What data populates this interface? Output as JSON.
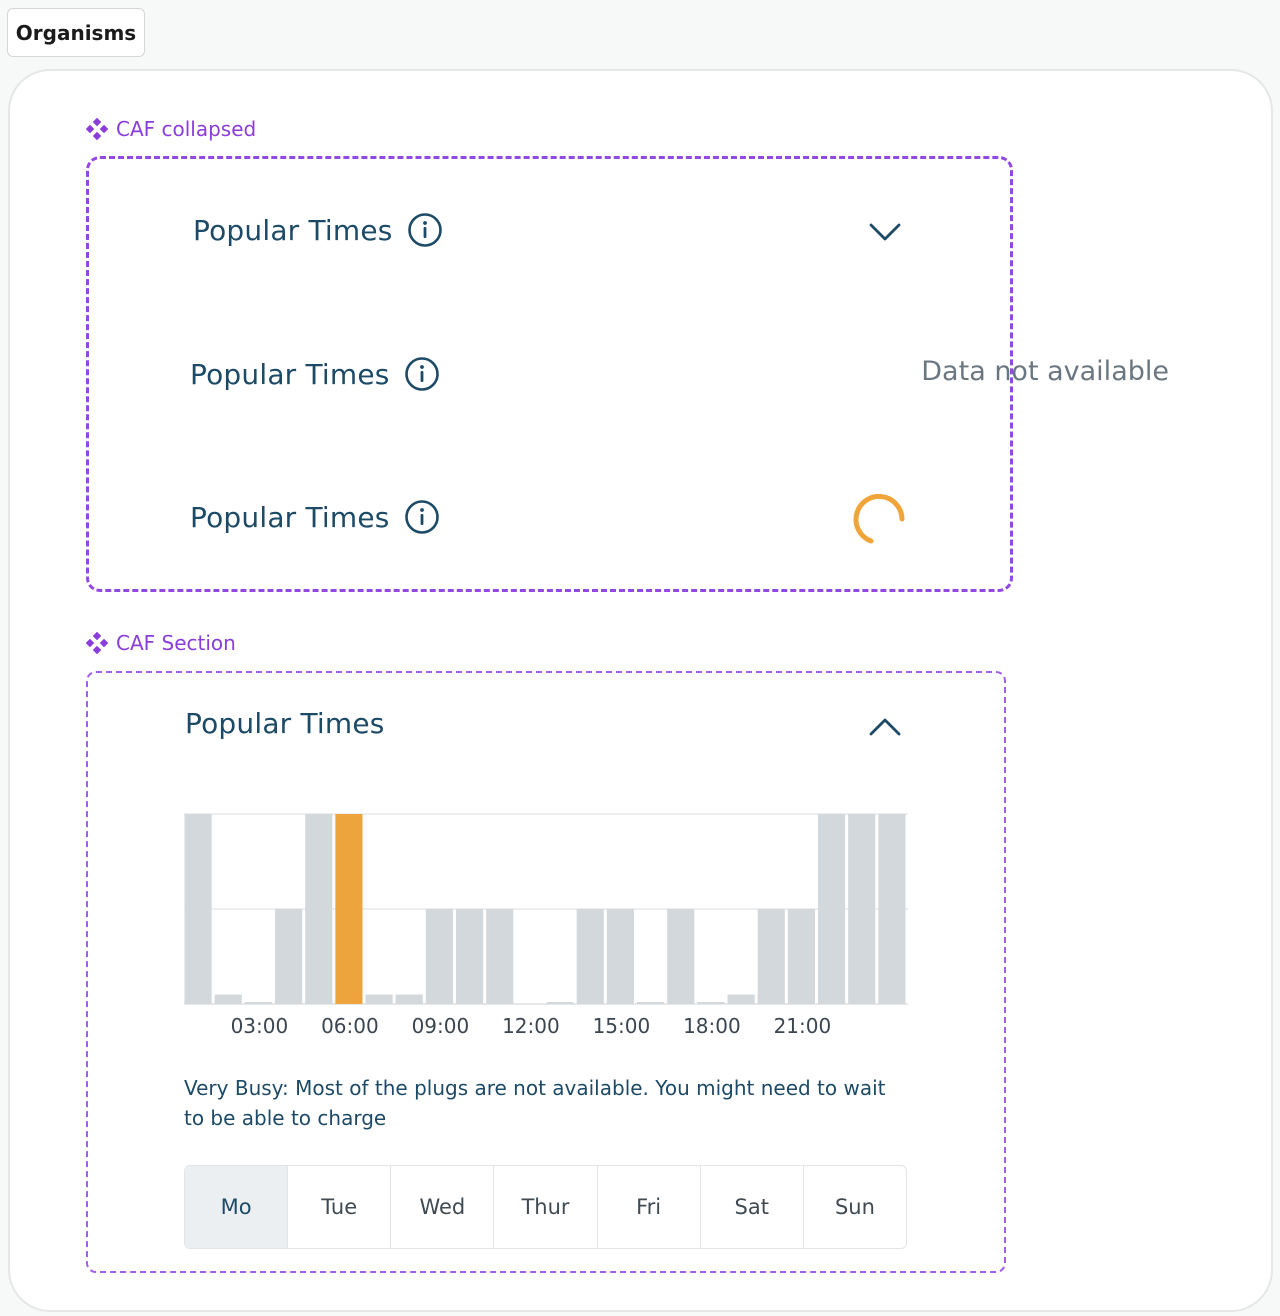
{
  "tab": {
    "label": "Organisms"
  },
  "collapsed": {
    "label": "CAF collapsed",
    "rows": [
      {
        "title": "Popular Times",
        "state": "chevron-down"
      },
      {
        "title": "Popular Times",
        "status": "Data not available"
      },
      {
        "title": "Popular Times",
        "state": "loading"
      }
    ]
  },
  "section": {
    "label": "CAF Section",
    "title": "Popular Times",
    "description": "Very Busy: Most of the plugs are not available. You might need to wait to be able to charge",
    "days": [
      "Mo",
      "Tue",
      "Wed",
      "Thur",
      "Fri",
      "Sat",
      "Sun"
    ],
    "selected_day": "Mo"
  },
  "chart_data": {
    "type": "bar",
    "x": [
      0,
      1,
      2,
      3,
      4,
      5,
      6,
      7,
      8,
      9,
      10,
      11,
      12,
      13,
      14,
      15,
      16,
      17,
      18,
      19,
      20,
      21,
      22,
      23
    ],
    "tick_labels": [
      "03:00",
      "06:00",
      "09:00",
      "12:00",
      "15:00",
      "18:00",
      "21:00"
    ],
    "tick_positions": [
      2.5,
      5.5,
      8.5,
      11.5,
      14.5,
      17.5,
      20.5
    ],
    "values": [
      2,
      0.1,
      0.02,
      1,
      2,
      2,
      0.1,
      0.1,
      1,
      1,
      1,
      0,
      0.02,
      1,
      1,
      0.02,
      1,
      0.02,
      0.1,
      1,
      1,
      2,
      2,
      2
    ],
    "highlight_index": 5,
    "ylim": [
      0,
      2
    ],
    "grid": true,
    "colors": {
      "bar": "#d2d8dc",
      "highlight": "#eea43c",
      "grid": "#e6e8ea"
    }
  },
  "colors": {
    "accent": "#8a3ddb",
    "title": "#1d4a66",
    "spinner": "#f0a43a"
  }
}
